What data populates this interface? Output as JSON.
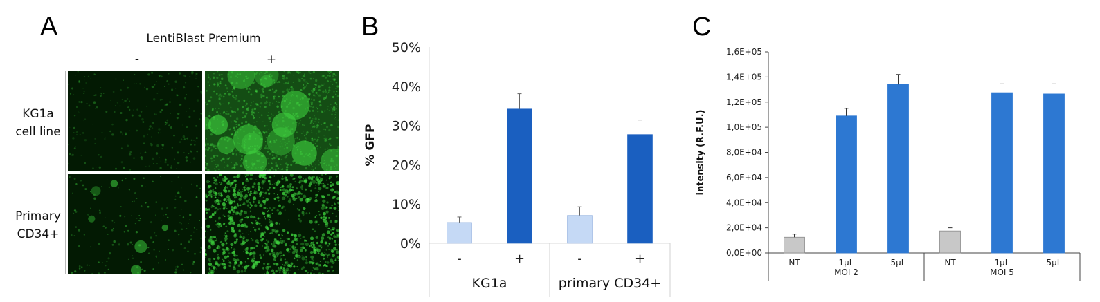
{
  "panels": {
    "a": {
      "letter": "A",
      "header": "LentiBlast Premium",
      "columns": [
        "-",
        "+"
      ],
      "rows": [
        {
          "line1": "KG1a",
          "line2": "cell line"
        },
        {
          "line1": "Primary",
          "line2": "CD34+"
        }
      ],
      "colors": {
        "fluorescence": "#3fd43f",
        "background": "#031a03"
      }
    },
    "b": {
      "letter": "B"
    },
    "c": {
      "letter": "C"
    }
  },
  "chart_data": [
    {
      "type": "bar",
      "panel": "B",
      "ylabel": "% GFP",
      "ylim": [
        0,
        50
      ],
      "yticks": [
        0,
        10,
        20,
        30,
        40,
        50
      ],
      "ytick_labels": [
        "0%",
        "10%",
        "20%",
        "30%",
        "40%",
        "50%"
      ],
      "categories": [
        "-",
        "+",
        "-",
        "+"
      ],
      "groups": [
        {
          "label": "KG1a",
          "categories": [
            "-",
            "+"
          ]
        },
        {
          "label": "primary CD34+",
          "categories": [
            "-",
            "+"
          ]
        }
      ],
      "values": [
        5.3,
        34.2,
        7.1,
        27.7
      ],
      "errors": [
        1.4,
        3.9,
        2.2,
        3.7
      ],
      "colors": [
        "#c5d9f5",
        "#1a5fc0",
        "#c5d9f5",
        "#1a5fc0"
      ],
      "grid": false
    },
    {
      "type": "bar",
      "panel": "C",
      "ylabel": "intensity (R.F.U.)",
      "ylim": [
        0,
        160000
      ],
      "yticks": [
        0,
        20000,
        40000,
        60000,
        80000,
        100000,
        120000,
        140000,
        160000
      ],
      "ytick_labels": [
        "0,0E+00",
        "2,0E+04",
        "4,0E+04",
        "6,0E+04",
        "8,0E+04",
        "1,0E+05",
        "1,2E+05",
        "1,4E+05",
        "1,6E+05"
      ],
      "categories": [
        "NT",
        "1µL",
        "5µL",
        "NT",
        "1µL",
        "5µL"
      ],
      "groups": [
        {
          "label": "MOI 2",
          "categories": [
            "NT",
            "1µL",
            "5µL"
          ]
        },
        {
          "label": "MOI 5",
          "categories": [
            "NT",
            "1µL",
            "5µL"
          ]
        }
      ],
      "values": [
        12500,
        109000,
        134000,
        17500,
        127500,
        126500
      ],
      "errors": [
        2500,
        6000,
        8000,
        2500,
        7000,
        8000
      ],
      "colors": [
        "#c8c8c8",
        "#2d78d2",
        "#2d78d2",
        "#c8c8c8",
        "#2d78d2",
        "#2d78d2"
      ],
      "grid": false
    }
  ]
}
